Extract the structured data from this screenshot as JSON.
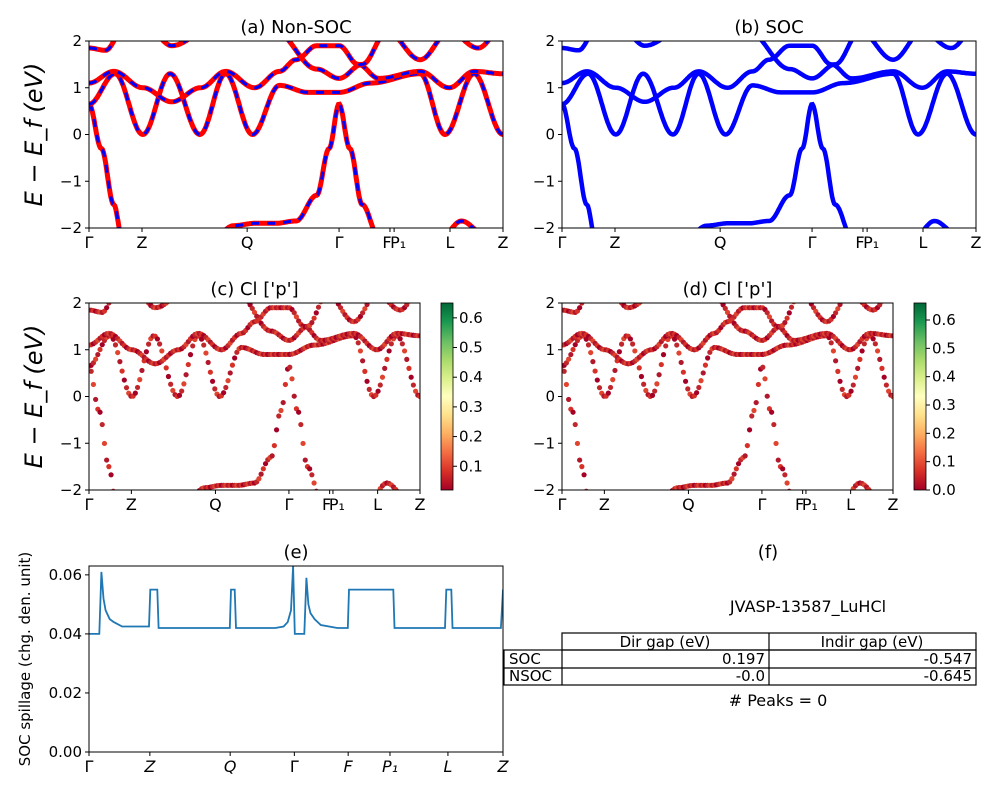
{
  "colors": {
    "nonsoc_a": "#ff0000",
    "nonsoc_b": "#0000ff",
    "soc": "#0000ff",
    "spillage": "#1f77b4",
    "colormap": [
      "#a50026",
      "#d73027",
      "#f46d43",
      "#fdae61",
      "#fee08b",
      "#ffffbf",
      "#d9ef8b",
      "#a6d96a",
      "#66bd63",
      "#1a9850",
      "#006837"
    ]
  },
  "chart_data": [
    {
      "id": "a",
      "type": "line",
      "title": "(a) Non-SOC",
      "ylabel": "E − E_f (eV)",
      "ylim": [
        -2,
        2
      ],
      "yticks": [
        "−2",
        "−1",
        "0",
        "1",
        "2"
      ],
      "xticks": [
        "Γ",
        "Z",
        "Q",
        "Γ",
        "F",
        "P₁",
        "L",
        "Z"
      ]
    },
    {
      "id": "b",
      "type": "line",
      "title": "(b) SOC",
      "ylim": [
        -2,
        2
      ],
      "yticks": [
        "−2",
        "−1",
        "0",
        "1",
        "2"
      ],
      "xticks": [
        "Γ",
        "Z",
        "Q",
        "Γ",
        "F",
        "P₁",
        "L",
        "Z"
      ]
    },
    {
      "id": "c",
      "type": "scatter",
      "title": "(c)  Cl ['p']",
      "ylabel": "E − E_f (eV)",
      "ylim": [
        -2,
        2
      ],
      "yticks": [
        "−2",
        "−1",
        "0",
        "1",
        "2"
      ],
      "xticks": [
        "Γ",
        "Z",
        "Q",
        "Γ",
        "F",
        "P₁",
        "L",
        "Z"
      ],
      "colorbar_ticks": [
        "0.1",
        "0.2",
        "0.3",
        "0.4",
        "0.5",
        "0.6"
      ],
      "colorbar_range": [
        0.02,
        0.65
      ]
    },
    {
      "id": "d",
      "type": "scatter",
      "title": "(d) Cl ['p']",
      "ylim": [
        -2,
        2
      ],
      "yticks": [
        "−2",
        "−1",
        "0",
        "1",
        "2"
      ],
      "xticks": [
        "Γ",
        "Z",
        "Q",
        "Γ",
        "F",
        "P₁",
        "L",
        "Z"
      ],
      "colorbar_ticks": [
        "0.0",
        "0.1",
        "0.2",
        "0.3",
        "0.4",
        "0.5",
        "0.6"
      ],
      "colorbar_range": [
        0.0,
        0.66
      ]
    },
    {
      "id": "e",
      "type": "line",
      "title": "(e)",
      "ylabel": "SOC spillage (chg. den. unit)",
      "ylim": [
        0,
        0.063
      ],
      "yticks": [
        "0.00",
        "0.02",
        "0.04",
        "0.06"
      ],
      "xticks": [
        "Γ",
        "Z",
        "Q",
        "Γ",
        "F",
        "P₁",
        "L",
        "Z"
      ],
      "x": [
        0,
        0.025,
        0.03,
        0.035,
        0.04,
        0.05,
        0.06,
        0.08,
        0.145,
        0.148,
        0.165,
        0.168,
        0.34,
        0.343,
        0.352,
        0.355,
        0.45,
        0.47,
        0.48,
        0.488,
        0.493,
        0.497,
        0.5,
        0.52,
        0.525,
        0.53,
        0.535,
        0.545,
        0.56,
        0.6,
        0.625,
        0.628,
        0.735,
        0.738,
        0.86,
        0.863,
        0.875,
        0.878,
        0.995,
        1.0
      ],
      "y": [
        0.04,
        0.04,
        0.061,
        0.052,
        0.048,
        0.045,
        0.044,
        0.0425,
        0.0425,
        0.055,
        0.055,
        0.042,
        0.042,
        0.055,
        0.055,
        0.042,
        0.042,
        0.0425,
        0.044,
        0.048,
        0.063,
        0.04,
        0.04,
        0.04,
        0.059,
        0.05,
        0.047,
        0.045,
        0.043,
        0.042,
        0.042,
        0.055,
        0.055,
        0.042,
        0.042,
        0.055,
        0.055,
        0.042,
        0.042,
        0.055
      ]
    }
  ],
  "bands": [
    {
      "k": [
        0,
        0.03,
        0.06,
        0.08,
        0.3,
        0.35,
        0.4,
        0.45,
        0.5,
        0.55,
        0.58,
        0.604,
        0.63,
        0.66,
        0.7,
        0.85,
        0.9,
        0.95,
        1.0
      ],
      "E": [
        0.65,
        -0.3,
        -1.5,
        -2.2,
        -2.2,
        -1.95,
        -1.9,
        -1.9,
        -1.85,
        -1.3,
        -0.3,
        0.65,
        -0.3,
        -1.5,
        -2.2,
        -2.2,
        -1.85,
        -2.1,
        -2.2
      ]
    },
    {
      "k": [
        0,
        0.063,
        0.13,
        0.196,
        0.268,
        0.33,
        0.395,
        0.46,
        0.53,
        0.604,
        0.68,
        0.8,
        0.86,
        0.93,
        1.0
      ],
      "E": [
        0.65,
        1.3,
        0.0,
        1.3,
        0.0,
        1.3,
        0.0,
        1.05,
        0.9,
        0.9,
        1.1,
        1.3,
        0.0,
        1.3,
        0.0
      ]
    },
    {
      "k": [
        0,
        0.06,
        0.13,
        0.2,
        0.27,
        0.33,
        0.4,
        0.46,
        0.5,
        0.55,
        0.604,
        0.65,
        0.7,
        0.8,
        0.87,
        0.93,
        1.0
      ],
      "E": [
        1.1,
        1.35,
        1.0,
        0.7,
        1.0,
        1.35,
        1.0,
        1.35,
        1.6,
        1.9,
        1.9,
        1.5,
        1.2,
        1.35,
        1.0,
        1.35,
        1.3
      ]
    },
    {
      "k": [
        0,
        0.04,
        0.08,
        0.14,
        0.2,
        0.3,
        0.38,
        0.45,
        0.55,
        0.604,
        0.66,
        0.72,
        0.8,
        0.87,
        0.94,
        1.0
      ],
      "E": [
        1.85,
        1.8,
        2.2,
        2.3,
        1.9,
        2.3,
        2.5,
        2.2,
        1.4,
        1.2,
        1.5,
        2.2,
        1.6,
        2.2,
        1.85,
        2.3
      ]
    }
  ],
  "kticks": [
    0,
    0.128,
    0.382,
    0.604,
    0.727,
    0.737,
    0.872,
    1.0
  ],
  "spill_kticks": [
    0,
    0.147,
    0.341,
    0.496,
    0.626,
    0.727,
    0.867,
    1.0
  ],
  "panel_f": {
    "title": "(f)",
    "material": "JVASP-13587_LuHCl",
    "table": {
      "headers": [
        "Dir gap (eV)",
        "Indir gap (eV)"
      ],
      "rows": [
        {
          "label": "SOC",
          "dir": "0.197",
          "indir": "-0.547"
        },
        {
          "label": "NSOC",
          "dir": "-0.0",
          "indir": "-0.645"
        }
      ]
    },
    "peaks": "# Peaks = 0"
  }
}
